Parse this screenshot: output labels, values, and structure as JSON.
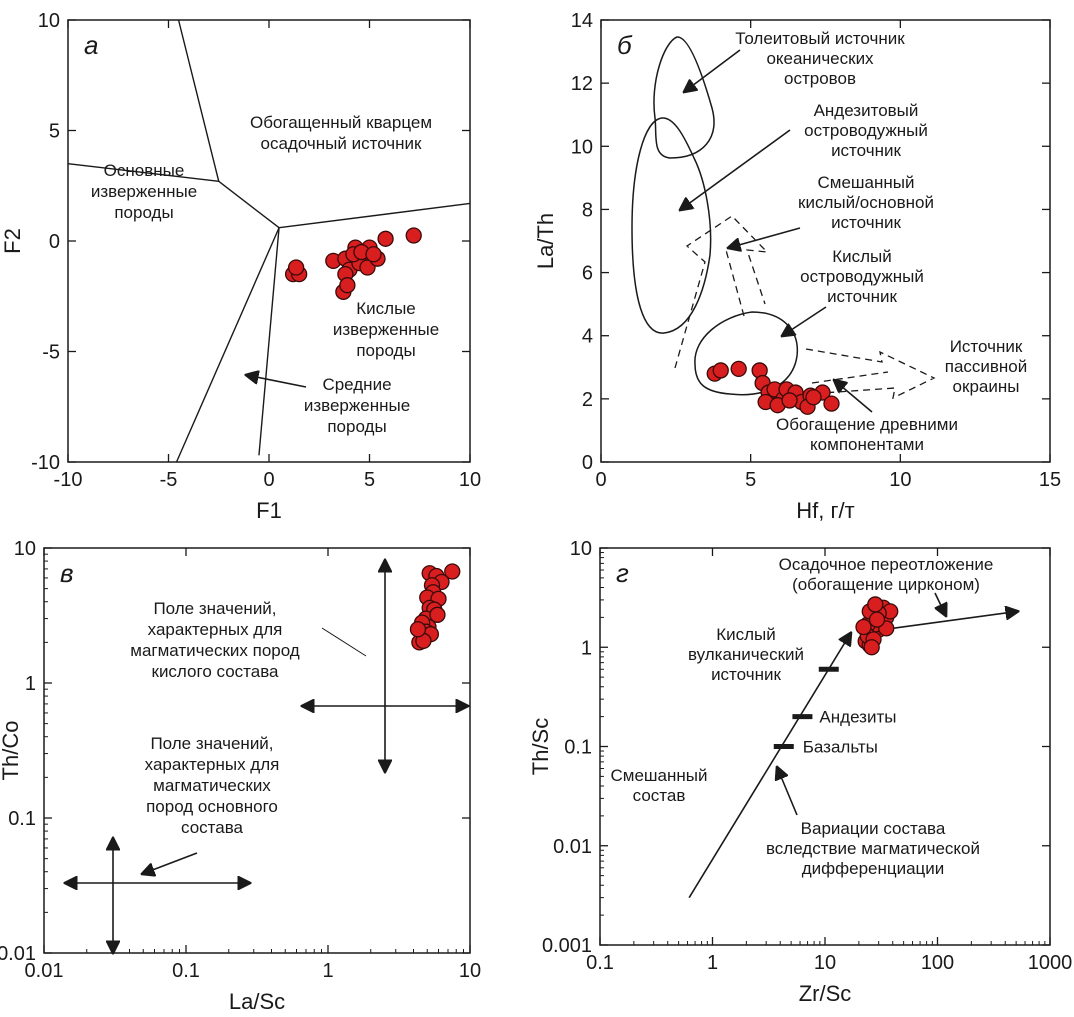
{
  "colors": {
    "point_fill": "#d81e1e",
    "point_stroke": "#3a0a0a",
    "line": "#1a1a1a"
  },
  "chart_data": [
    {
      "id": "a",
      "type": "scatter",
      "panel_label": "а",
      "xlabel": "F1",
      "ylabel": "F2",
      "xlim": [
        -10,
        10
      ],
      "ylim": [
        -10,
        10
      ],
      "xticks": [
        -10,
        -5,
        0,
        5,
        10
      ],
      "yticks": [
        -10,
        -5,
        0,
        5,
        10
      ],
      "series": [
        {
          "x": [
            1.2,
            1.5,
            1.35,
            3.2,
            3.8,
            4.3,
            4.0,
            4.7,
            5.0,
            4.5,
            3.8,
            4.9,
            5.4,
            5.8,
            7.2,
            4.2,
            3.7,
            3.9,
            4.6,
            5.2
          ],
          "y": [
            -1.5,
            -1.5,
            -1.2,
            -0.9,
            -0.8,
            -0.3,
            -1.3,
            -0.9,
            -0.3,
            -1.0,
            -1.5,
            -1.2,
            -0.8,
            0.1,
            0.25,
            -0.6,
            -2.3,
            -2.0,
            -0.5,
            -0.6
          ]
        }
      ],
      "boundaries": [
        [
          [
            -4.5,
            10
          ],
          [
            -2.5,
            2.7
          ]
        ],
        [
          [
            -2.5,
            2.7
          ],
          [
            -10,
            3.5
          ]
        ],
        [
          [
            -2.5,
            2.7
          ],
          [
            0.5,
            0.6
          ]
        ],
        [
          [
            0.5,
            0.6
          ],
          [
            -4.6,
            -10
          ]
        ],
        [
          [
            0.5,
            0.6
          ],
          [
            -0.5,
            -9.7
          ]
        ],
        [
          [
            0.5,
            0.6
          ],
          [
            10,
            1.7
          ]
        ]
      ],
      "annotations": {
        "quartz": [
          "Обогащенный кварцем",
          "осадочный источник"
        ],
        "basic": [
          "Основные",
          "изверженные",
          "породы"
        ],
        "acid": [
          "Кислые",
          "изверженные",
          "породы"
        ],
        "intermediate": [
          "Средние",
          "изверженные",
          "породы"
        ]
      }
    },
    {
      "id": "b",
      "type": "scatter",
      "panel_label": "б",
      "xlabel": "Hf, г/т",
      "ylabel": "La/Th",
      "xlim": [
        0,
        15
      ],
      "ylim": [
        0,
        14
      ],
      "xticks": [
        0,
        5,
        10,
        15
      ],
      "yticks": [
        0,
        2,
        4,
        6,
        8,
        10,
        12,
        14
      ],
      "series": [
        {
          "x": [
            3.8,
            4.0,
            4.6,
            5.3,
            5.4,
            5.6,
            5.8,
            6.1,
            6.2,
            6.5,
            6.7,
            7.0,
            7.4,
            7.7,
            5.5,
            5.9,
            6.3,
            6.9,
            7.1
          ],
          "y": [
            2.8,
            2.9,
            2.95,
            2.9,
            2.5,
            2.2,
            2.3,
            2.0,
            2.3,
            2.2,
            1.9,
            2.1,
            2.2,
            1.85,
            1.9,
            1.8,
            1.95,
            1.75,
            2.05
          ]
        }
      ],
      "annotations": {
        "tholeiite": [
          "Толеитовый источник",
          "океанических",
          "островов"
        ],
        "andesite": [
          "Андезитовый",
          "островодужный",
          "источник"
        ],
        "mixed": [
          "Смешанный",
          "кислый/основной",
          "источник"
        ],
        "felsic": [
          "Кислый",
          "островодужный",
          "источник"
        ],
        "passive": [
          "Источник",
          "пассивной",
          "окраины"
        ],
        "ancient": [
          "Обогащение древними",
          "компонентами"
        ]
      }
    },
    {
      "id": "v",
      "type": "scatter",
      "panel_label": "в",
      "xlabel": "La/Sc",
      "ylabel": "Th/Co",
      "xscale": "log",
      "yscale": "log",
      "xlim": [
        0.01,
        10
      ],
      "ylim": [
        0.01,
        10
      ],
      "xticks": [
        0.01,
        0.1,
        1,
        10
      ],
      "yticks": [
        0.01,
        0.1,
        1,
        10
      ],
      "xticklabels": [
        "0.01",
        "0.1",
        "1",
        "10"
      ],
      "yticklabels": [
        "0.01",
        "0.1",
        "1",
        "10"
      ],
      "series": [
        {
          "x": [
            5.2,
            5.8,
            7.5,
            6.3,
            5.4,
            5.5,
            5.0,
            6.0,
            5.2,
            5.6,
            4.9,
            5.9,
            5.1,
            4.6,
            4.9,
            5.3,
            4.4,
            4.7,
            4.3
          ],
          "y": [
            6.5,
            6.2,
            6.7,
            5.6,
            5.3,
            4.7,
            4.3,
            4.2,
            3.6,
            3.5,
            3.0,
            3.2,
            2.6,
            2.8,
            2.4,
            2.3,
            2.0,
            2.05,
            2.5
          ]
        }
      ],
      "annotations": {
        "felsic": [
          "Поле значений,",
          "характерных для",
          "магматических пород",
          "кислого состава"
        ],
        "basic": [
          "Поле значений,",
          "характерных для",
          "магматических",
          "пород основного",
          "состава"
        ]
      }
    },
    {
      "id": "g",
      "type": "scatter",
      "panel_label": "г",
      "xlabel": "Zr/Sc",
      "ylabel": "Th/Sc",
      "xscale": "log",
      "yscale": "log",
      "xlim": [
        0.1,
        1000
      ],
      "ylim": [
        0.001,
        10
      ],
      "xticks": [
        0.1,
        1,
        10,
        100,
        1000
      ],
      "yticks": [
        0.001,
        0.01,
        0.1,
        1,
        10
      ],
      "xticklabels": [
        "0.1",
        "1",
        "10",
        "100",
        "1000"
      ],
      "yticklabels": [
        "0.001",
        "0.01",
        "0.1",
        "1",
        "10"
      ],
      "series": [
        {
          "x": [
            23,
            25,
            27,
            30,
            32,
            35,
            28,
            33,
            38,
            24,
            27,
            30,
            35,
            24,
            27,
            22,
            25,
            28,
            26,
            29
          ],
          "y": [
            1.15,
            1.05,
            1.35,
            1.5,
            1.8,
            2.0,
            1.7,
            2.5,
            2.3,
            1.7,
            2.0,
            2.2,
            1.55,
            1.3,
            1.2,
            1.6,
            2.3,
            2.7,
            1.0,
            1.9
          ]
        }
      ],
      "markers": [
        {
          "label": "Андезиты",
          "x": 6.3,
          "y": 0.2
        },
        {
          "label": "Базальты",
          "x": 4.3,
          "y": 0.1
        },
        {
          "label": "",
          "x": 10.8,
          "y": 0.6
        }
      ],
      "annotations": {
        "zircon": [
          "Осадочное переотложение",
          "(обогащение цирконом)"
        ],
        "felsic_volcanic": [
          "Кислый",
          "вулканический",
          "источник"
        ],
        "mixed": [
          "Смешанный",
          "состав"
        ],
        "variation": [
          "Вариации состава",
          "вследствие магматической",
          "дифференциации"
        ]
      }
    }
  ]
}
